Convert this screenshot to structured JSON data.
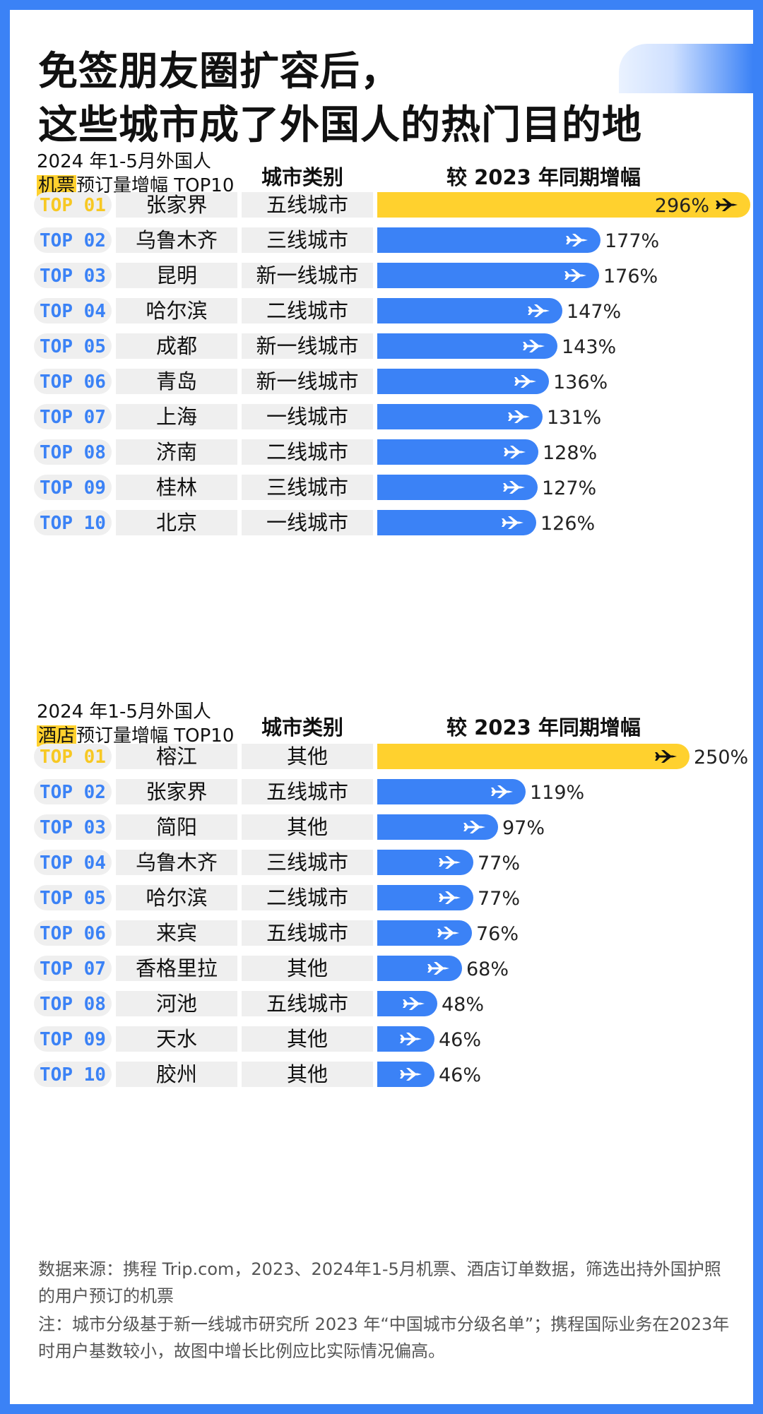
{
  "title_line1": "免签朋友圈扩容后，",
  "title_line2": "这些城市成了外国人的热门目的地",
  "colors": {
    "blue": "#3b82f6",
    "gold": "#ffd12e",
    "rank_gold": "#f7c823"
  },
  "chart_data": [
    {
      "type": "bar",
      "subtitle_prefix": "2024 年1-5月外国人",
      "subtitle_highlight": "机票",
      "subtitle_suffix": "预订量增幅 TOP10",
      "col_type_label": "城市类别",
      "col_growth_label": "较 2023 年同期增幅",
      "unit": "%",
      "xlim": [
        0,
        296
      ],
      "rows": [
        {
          "rank": "TOP 01",
          "city": "张家界",
          "type": "五线城市",
          "value": 296
        },
        {
          "rank": "TOP 02",
          "city": "乌鲁木齐",
          "type": "三线城市",
          "value": 177
        },
        {
          "rank": "TOP 03",
          "city": "昆明",
          "type": "新一线城市",
          "value": 176
        },
        {
          "rank": "TOP 04",
          "city": "哈尔滨",
          "type": "二线城市",
          "value": 147
        },
        {
          "rank": "TOP 05",
          "city": "成都",
          "type": "新一线城市",
          "value": 143
        },
        {
          "rank": "TOP 06",
          "city": "青岛",
          "type": "新一线城市",
          "value": 136
        },
        {
          "rank": "TOP 07",
          "city": "上海",
          "type": "一线城市",
          "value": 131
        },
        {
          "rank": "TOP 08",
          "city": "济南",
          "type": "二线城市",
          "value": 128
        },
        {
          "rank": "TOP 09",
          "city": "桂林",
          "type": "三线城市",
          "value": 127
        },
        {
          "rank": "TOP 10",
          "city": "北京",
          "type": "一线城市",
          "value": 126
        }
      ]
    },
    {
      "type": "bar",
      "subtitle_prefix": "2024 年1-5月外国人",
      "subtitle_highlight": "酒店",
      "subtitle_suffix": "预订量增幅 TOP10",
      "col_type_label": "城市类别",
      "col_growth_label": "较 2023 年同期增幅",
      "unit": "%",
      "xlim": [
        0,
        250
      ],
      "rows": [
        {
          "rank": "TOP 01",
          "city": "榕江",
          "type": "其他",
          "value": 250
        },
        {
          "rank": "TOP 02",
          "city": "张家界",
          "type": "五线城市",
          "value": 119
        },
        {
          "rank": "TOP 03",
          "city": "简阳",
          "type": "其他",
          "value": 97
        },
        {
          "rank": "TOP 04",
          "city": "乌鲁木齐",
          "type": "三线城市",
          "value": 77
        },
        {
          "rank": "TOP 05",
          "city": "哈尔滨",
          "type": "二线城市",
          "value": 77
        },
        {
          "rank": "TOP 06",
          "city": "来宾",
          "type": "五线城市",
          "value": 76
        },
        {
          "rank": "TOP 07",
          "city": "香格里拉",
          "type": "其他",
          "value": 68
        },
        {
          "rank": "TOP 08",
          "city": "河池",
          "type": "五线城市",
          "value": 48
        },
        {
          "rank": "TOP 09",
          "city": "天水",
          "type": "其他",
          "value": 46
        },
        {
          "rank": "TOP 10",
          "city": "胶州",
          "type": "其他",
          "value": 46
        }
      ]
    }
  ],
  "footnote_source": "数据来源：携程 Trip.com，2023、2024年1-5月机票、酒店订单数据，筛选出持外国护照的用户预订的机票",
  "footnote_note": "注：城市分级基于新一线城市研究所 2023 年“中国城市分级名单”；携程国际业务在2023年时用户基数较小，故图中增长比例应比实际情况偏高。"
}
